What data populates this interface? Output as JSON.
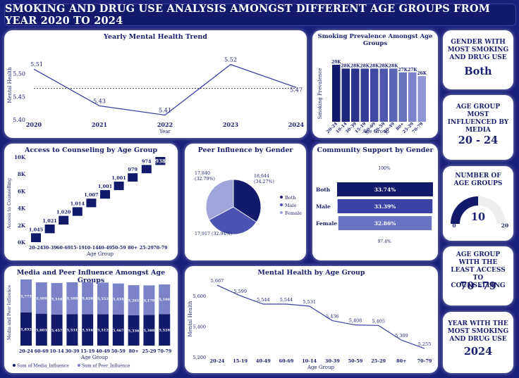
{
  "header": {
    "title": "SMOKING AND DRUG USE ANALYSIS AMONGST DIFFERENT AGE GROUPS FROM YEAR 2020 TO 2024"
  },
  "yearly_trend": {
    "title": "Yearly Mental Health Trend",
    "xlabel": "Year",
    "ylabel": "Mental Health",
    "chart_data": {
      "type": "line",
      "x": [
        "2020",
        "2021",
        "2022",
        "2023",
        "2024"
      ],
      "values": [
        5.51,
        5.43,
        5.41,
        5.52,
        5.47
      ],
      "labels": [
        "5.51",
        "5.43",
        "5.41",
        "5.52",
        "5.47"
      ],
      "ylim": [
        5.4,
        5.55
      ],
      "yticks": [
        "5.40",
        "5.45",
        "5.50"
      ],
      "average": 5.468
    }
  },
  "smoking": {
    "title": "Smoking Prevalence Amongst Age Groups",
    "xlabel": "Age Group",
    "ylabel": "Smoking Prevalence",
    "chart_data": {
      "type": "bar",
      "categories": [
        "20-24",
        "10-14",
        "30-39",
        "15-19",
        "60-69",
        "50-59",
        "40-49",
        "80+",
        "25-29",
        "70-79"
      ],
      "values": [
        29,
        28,
        28,
        28,
        28,
        28,
        28,
        27,
        27,
        26
      ],
      "labels": [
        "29K",
        "28K",
        "28K",
        "28K",
        "28K",
        "28K",
        "28K",
        "27K",
        "27K",
        "26K"
      ],
      "colors": [
        "#141a6b",
        "#1f267d",
        "#2b328c",
        "#363d99",
        "#4048a3",
        "#4e56ad",
        "#5c64b6",
        "#6c74c0",
        "#7c83c9",
        "#9096d3"
      ]
    }
  },
  "counseling": {
    "title": "Access to Counseling by Age Group",
    "xlabel": "Age Group",
    "ylabel": "Access to Counselling",
    "chart_data": {
      "type": "bar",
      "categories": [
        "20-24",
        "30-39",
        "60-69",
        "15-19",
        "10-14",
        "40-49",
        "50-59",
        "80+",
        "25-29",
        "70-79"
      ],
      "values": [
        1045,
        1021,
        1020,
        1014,
        1007,
        1001,
        1001,
        979,
        974,
        938
      ],
      "labels": [
        "1,045",
        "1,021",
        "1,020",
        "1,014",
        "1,007",
        "1,001",
        "1,001",
        "979",
        "974",
        "938"
      ],
      "yticks": [
        "0K",
        "2K",
        "4K",
        "6K",
        "8K",
        "10K"
      ]
    }
  },
  "peer": {
    "title": "Peer Influence by Gender",
    "chart_data": {
      "type": "pie",
      "categories": [
        "Both",
        "Male",
        "Female"
      ],
      "values": [
        18644,
        17917,
        17840
      ],
      "labels": [
        "18,644\n(34.27%)",
        "17,917 (32.94%)",
        "17,840\n(32.79%)"
      ],
      "colors": [
        "#141a6b",
        "#4b53b0",
        "#9fa4d9"
      ]
    }
  },
  "community": {
    "title": "Community Support by Gender",
    "top_label": "100%",
    "bottom_label": "97.4%",
    "chart_data": {
      "type": "bar",
      "categories": [
        "Both",
        "Male",
        "Female"
      ],
      "values": [
        33.74,
        33.39,
        32.86
      ],
      "labels": [
        "33.74%",
        "33.39%",
        "32.86%"
      ],
      "colors": [
        "#141a6b",
        "#3b42a3",
        "#6c72c4"
      ]
    }
  },
  "media": {
    "title": "Media and Peer Influence Amongst Age Groups",
    "xlabel": "Age Group",
    "ylabel": "Media and Peer Influence",
    "chart_data": {
      "type": "bar",
      "stacked": true,
      "categories": [
        "20-24",
        "60-69",
        "10-14",
        "30-39",
        "15-19",
        "40-49",
        "50-59",
        "80+",
        "25-29",
        "70-79"
      ],
      "series": [
        {
          "name": "Sum of Media_Influence",
          "values": [
            5832,
            5603,
            5457,
            5531,
            5516,
            5512,
            5467,
            5336,
            5388,
            5528
          ],
          "labels": [
            "5,832",
            "5,603",
            "5,457",
            "5,531",
            "5,516",
            "5,512",
            "5,467",
            "5,336",
            "5,388",
            "5,528"
          ],
          "color": "#141a6b"
        },
        {
          "name": "Sum of Peer_Influence",
          "values": [
            5773,
            5489,
            5518,
            5588,
            5628,
            5552,
            5434,
            5261,
            5179,
            5199
          ],
          "labels": [
            "5,773",
            "5,489",
            "5,518",
            "5,588",
            "5,628",
            "5,552",
            "5,434",
            "5,261",
            "5,179",
            "5,199"
          ],
          "color": "#7c82c9"
        }
      ]
    }
  },
  "mental": {
    "title": "Mental Health by Age Group",
    "xlabel": "Age Group",
    "ylabel": "Mental Health",
    "chart_data": {
      "type": "line",
      "x": [
        "20-24",
        "15-19",
        "40-49",
        "60-69",
        "10-14",
        "30-39",
        "50-59",
        "25-29",
        "80+",
        "70-79"
      ],
      "values": [
        5667,
        5599,
        5544,
        5544,
        5531,
        5436,
        5408,
        5405,
        5309,
        5255
      ],
      "labels": [
        "5,667",
        "5,599",
        "5,544",
        "5,544",
        "5,531",
        "5,436",
        "5,408",
        "5,405",
        "5,309",
        "5,255"
      ],
      "ylim": [
        5200,
        5700
      ],
      "yticks": [
        "5,200",
        "5,400",
        "5,600"
      ]
    }
  },
  "cards": [
    {
      "title": "GENDER WITH MOST SMOKING AND DRUG USE",
      "value": "Both"
    },
    {
      "title": "AGE GROUP MOST INFLUENCED BY MEDIA",
      "value": "20 - 24"
    },
    {
      "title": "NUMBER OF AGE GROUPS",
      "value": "10",
      "min": "0",
      "max": "20",
      "fraction": 0.5
    },
    {
      "title": "AGE GROUP WITH THE LEAST ACCESS TO COUNSELLING",
      "value": "70 -79"
    },
    {
      "title": "YEAR WITH THE MOST SMOKING AND DRUG USE",
      "value": "2024"
    }
  ]
}
